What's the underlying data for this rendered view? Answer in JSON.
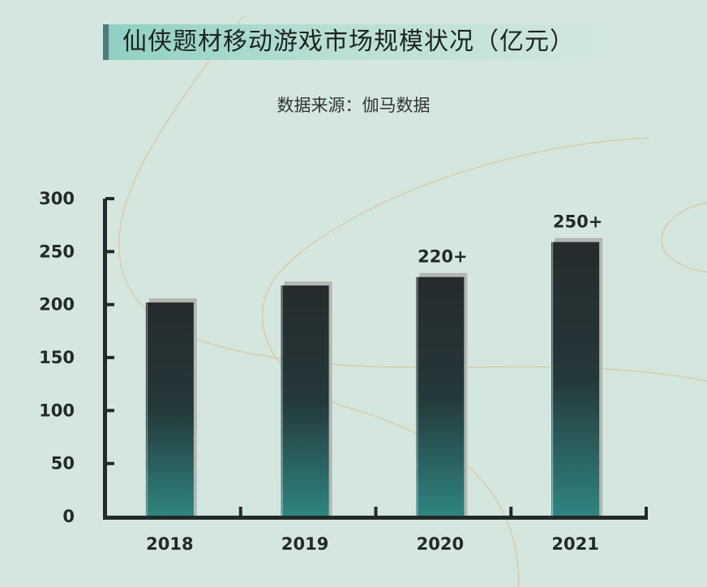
{
  "chart_data": {
    "type": "bar",
    "title": "仙侠题材移动游戏市场规模状况（亿元）",
    "subtitle": "数据来源：伽马数据",
    "categories": [
      "2018",
      "2019",
      "2020",
      "2021"
    ],
    "values": [
      202,
      218,
      226,
      259
    ],
    "data_labels": [
      "",
      "",
      "220+",
      "250+"
    ],
    "ylim": [
      0,
      300
    ],
    "yticks": [
      0,
      50,
      100,
      150,
      200,
      250,
      300
    ],
    "grid": false,
    "legend": "none",
    "colors": {
      "background": "#d4e7de",
      "bar_top": "#262b2d",
      "bar_bottom": "#2f8580",
      "axis": "#222a2a",
      "accent": "#4f7c78"
    }
  }
}
